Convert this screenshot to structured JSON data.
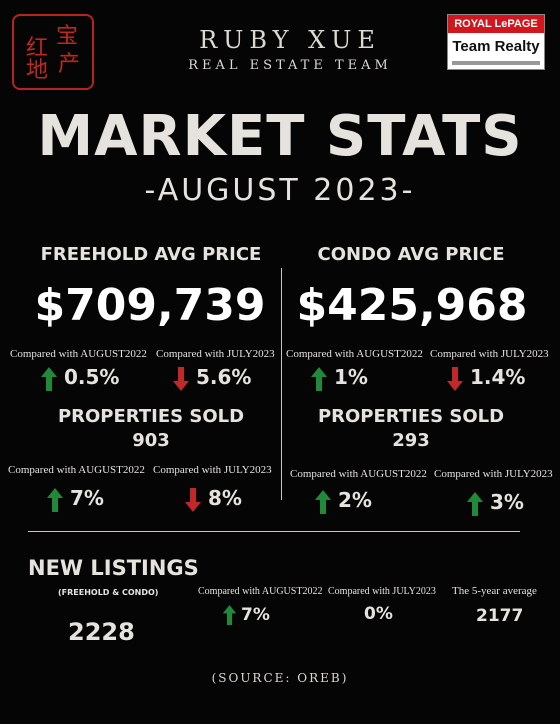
{
  "seal": {
    "chars": [
      "宝",
      "红",
      "产",
      "地"
    ],
    "color": "#c0281f"
  },
  "brand": {
    "name": "RUBY XUE",
    "subtitle": "REAL ESTATE TEAM"
  },
  "logo": {
    "line1": "ROYAL LePAGE",
    "line2": "Team Realty"
  },
  "title": "MARKET STATS",
  "subtitle": "-AUGUST 2023-",
  "colors": {
    "up": "#1f8a3a",
    "down": "#c0282a",
    "background": "#050505"
  },
  "freehold": {
    "heading": "FREEHOLD AVG PRICE",
    "price": "$709,739",
    "cmp_aug": "Compared with AUGUST2022",
    "cmp_jul": "Compared with JULY2023",
    "aug_change": "0.5%",
    "jul_change": "5.6%",
    "sold_heading": "PROPERTIES SOLD",
    "sold_count": "903",
    "sold_cmp_aug": "Compared with AUGUST2022",
    "sold_cmp_jul": "Compared with JULY2023",
    "sold_aug_change": "7%",
    "sold_jul_change": "8%"
  },
  "condo": {
    "heading": "CONDO AVG PRICE",
    "price": "$425,968",
    "cmp_aug": "Compared with AUGUST2022",
    "cmp_jul": "Compared with JULY2023",
    "aug_change": "1%",
    "jul_change": "1.4%",
    "sold_heading": "PROPERTIES SOLD",
    "sold_count": "293",
    "sold_cmp_aug": "Compared with AUGUST2022",
    "sold_cmp_jul": "Compared with JULY2023",
    "sold_aug_change": "2%",
    "sold_jul_change": "3%"
  },
  "new_listings": {
    "title": "NEW LISTINGS",
    "subtitle": "(FREEHOLD & CONDO)",
    "value": "2228",
    "cmp_aug": "Compared with AUGUST2022",
    "aug_change": "7%",
    "cmp_jul": "Compared with JULY2023",
    "jul_change": "0%",
    "avg_label": "The 5-year average",
    "avg_value": "2177"
  },
  "source": "(SOURCE: OREB)"
}
